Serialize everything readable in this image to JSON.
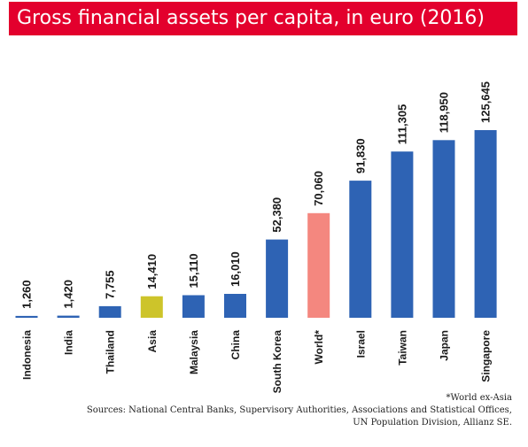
{
  "title": "Gross financial assets per capita, in euro (2016)",
  "footnote": "*World ex-Asia",
  "sources_line1": "Sources: National Central Banks, Supervisory Authorities, Associations and Statistical Offices,",
  "sources_line2": "UN Population Division, Allianz SE.",
  "colors": {
    "title_band": "#e3002d",
    "default_bar": "#2e63b4",
    "asia_bar": "#cdc42a",
    "world_bar": "#f4877f"
  },
  "chart_data": {
    "type": "bar",
    "title": "Gross financial assets per capita, in euro (2016)",
    "categories": [
      "Indonesia",
      "India",
      "Thailand",
      "Asia",
      "Malaysia",
      "China",
      "South Korea",
      "World*",
      "Israel",
      "Taiwan",
      "Japan",
      "Singapore"
    ],
    "values": [
      1260,
      1420,
      7755,
      14410,
      15110,
      16010,
      52380,
      70060,
      91830,
      111305,
      118950,
      125645
    ],
    "value_labels": [
      "1,260",
      "1,420",
      "7,755",
      "14,410",
      "15,110",
      "16,010",
      "52,380",
      "70,060",
      "91,830",
      "111,305",
      "118,950",
      "125,645"
    ],
    "bar_colors": [
      "#2e63b4",
      "#2e63b4",
      "#2e63b4",
      "#cdc42a",
      "#2e63b4",
      "#2e63b4",
      "#2e63b4",
      "#f4877f",
      "#2e63b4",
      "#2e63b4",
      "#2e63b4",
      "#2e63b4"
    ],
    "xlabel": "",
    "ylabel": "",
    "ylim": [
      0,
      130000
    ],
    "grid": false,
    "legend": "none"
  }
}
